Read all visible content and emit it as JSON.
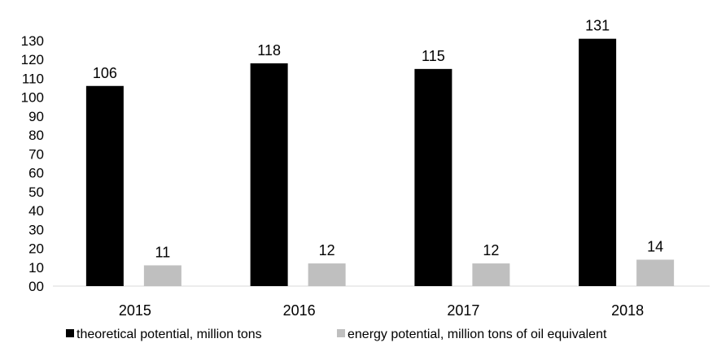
{
  "chart_data": {
    "type": "bar",
    "categories": [
      "2015",
      "2016",
      "2017",
      "2018"
    ],
    "series": [
      {
        "name": "theoretical potential, million tons",
        "values": [
          106,
          118,
          115,
          131
        ],
        "color": "#000000"
      },
      {
        "name": "energy potential, million tons of oil equivalent",
        "values": [
          11,
          12,
          12,
          14
        ],
        "color": "#bfbfbf"
      }
    ],
    "y_tick_labels": [
      "00",
      "10",
      "20",
      "30",
      "40",
      "50",
      "60",
      "70",
      "80",
      "90",
      "100",
      "110",
      "120",
      "130"
    ],
    "ylim": [
      0,
      130
    ],
    "grid": false,
    "legend_position": "bottom",
    "data_labels": true
  }
}
